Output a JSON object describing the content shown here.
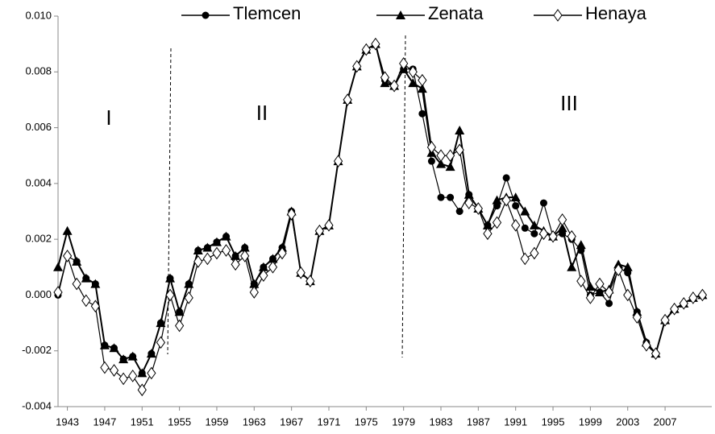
{
  "chart_data": {
    "type": "line",
    "x": [
      1942,
      1943,
      1944,
      1945,
      1946,
      1947,
      1948,
      1949,
      1950,
      1951,
      1952,
      1953,
      1954,
      1955,
      1956,
      1957,
      1958,
      1959,
      1960,
      1961,
      1962,
      1963,
      1964,
      1965,
      1966,
      1967,
      1968,
      1969,
      1970,
      1971,
      1972,
      1973,
      1974,
      1975,
      1976,
      1977,
      1978,
      1979,
      1980,
      1981,
      1982,
      1983,
      1984,
      1985,
      1986,
      1987,
      1988,
      1989,
      1990,
      1991,
      1992,
      1993,
      1994,
      1995,
      1996,
      1997,
      1998,
      1999,
      2000,
      2001,
      2002,
      2003,
      2004,
      2005,
      2006,
      2007,
      2008,
      2009,
      2010,
      2011
    ],
    "series": [
      {
        "name": "Tlemcen",
        "color": "#000000",
        "marker": "circle",
        "values": [
          0.0,
          0.0014,
          0.0012,
          0.0006,
          0.0004,
          -0.0018,
          -0.0019,
          -0.0023,
          -0.0022,
          -0.0028,
          -0.0021,
          -0.001,
          0.0006,
          -0.0006,
          0.0004,
          0.0016,
          0.0017,
          0.0019,
          0.0021,
          0.0014,
          0.0017,
          0.0004,
          0.001,
          0.0013,
          0.0017,
          0.003,
          0.0008,
          0.0005,
          0.0023,
          0.0025,
          0.0048,
          0.007,
          0.0082,
          0.0088,
          0.009,
          0.0077,
          0.0075,
          0.0081,
          0.0081,
          0.0065,
          0.0048,
          0.0035,
          0.0035,
          0.003,
          0.0036,
          0.0031,
          0.0025,
          0.0032,
          0.0042,
          0.0032,
          0.0024,
          0.0022,
          0.0033,
          0.0021,
          0.0022,
          0.002,
          0.0016,
          0.0,
          0.0001,
          -0.0003,
          0.001,
          0.0008,
          -0.0006,
          -0.0017,
          -0.0021,
          -0.0009,
          -0.0005,
          -0.0003,
          -0.0001,
          0.0
        ]
      },
      {
        "name": "Zenata",
        "color": "#000000",
        "marker": "triangle",
        "values": [
          0.001,
          0.0023,
          0.0012,
          0.0006,
          0.0004,
          -0.0018,
          -0.0019,
          -0.0023,
          -0.0022,
          -0.0028,
          -0.0021,
          -0.001,
          0.0006,
          -0.0006,
          0.0004,
          0.0016,
          0.0017,
          0.0019,
          0.0021,
          0.0014,
          0.0017,
          0.0004,
          0.001,
          0.0013,
          0.0017,
          0.003,
          0.0008,
          0.0005,
          0.0023,
          0.0025,
          0.0048,
          0.007,
          0.0082,
          0.0088,
          0.009,
          0.0076,
          0.0075,
          0.0081,
          0.0076,
          0.0074,
          0.0051,
          0.0047,
          0.0046,
          0.0059,
          0.0036,
          0.0031,
          0.0025,
          0.0034,
          0.0035,
          0.0035,
          0.003,
          0.0025,
          0.0023,
          0.0021,
          0.0024,
          0.001,
          0.0018,
          0.0003,
          0.0001,
          0.0002,
          0.0011,
          0.001,
          -0.0006,
          -0.0017,
          -0.0021,
          -0.0009,
          -0.0005,
          -0.0003,
          -0.0001,
          0.0
        ]
      },
      {
        "name": "Henaya",
        "color": "#000000",
        "marker": "diamond",
        "values": [
          0.0001,
          0.0014,
          0.0004,
          -0.0002,
          -0.0004,
          -0.0026,
          -0.0027,
          -0.003,
          -0.0029,
          -0.0034,
          -0.0028,
          -0.0017,
          0.0,
          -0.0011,
          -0.0001,
          0.0012,
          0.0013,
          0.0015,
          0.0016,
          0.0011,
          0.0014,
          0.0001,
          0.0007,
          0.001,
          0.0015,
          0.0029,
          0.0008,
          0.0005,
          0.0023,
          0.0025,
          0.0048,
          0.007,
          0.0082,
          0.0088,
          0.009,
          0.0078,
          0.0075,
          0.0083,
          0.008,
          0.0077,
          0.0053,
          0.005,
          0.005,
          0.0052,
          0.0033,
          0.0031,
          0.0022,
          0.0026,
          0.0034,
          0.0025,
          0.0013,
          0.0015,
          0.0022,
          0.0021,
          0.0027,
          0.0021,
          0.0005,
          -0.0001,
          0.0004,
          0.0001,
          0.0009,
          0.0,
          -0.0008,
          -0.0018,
          -0.0021,
          -0.0009,
          -0.0005,
          -0.0003,
          -0.0001,
          0.0
        ]
      }
    ],
    "annotations": [
      "I",
      "II",
      "III"
    ],
    "xlim": [
      1942,
      2012
    ],
    "xticks": [
      1943,
      1947,
      1951,
      1955,
      1959,
      1963,
      1967,
      1971,
      1975,
      1979,
      1983,
      1987,
      1991,
      1995,
      1999,
      2003,
      2007
    ],
    "ylim": [
      -0.004,
      0.01
    ],
    "yticks": [
      -0.004,
      -0.002,
      {
        "value": 0,
        "label": "0.000"
      },
      0.002,
      0.004,
      0.006,
      0.008,
      {
        "value": 0.01,
        "label": "0.010"
      }
    ],
    "grid": false,
    "legend": "top"
  }
}
